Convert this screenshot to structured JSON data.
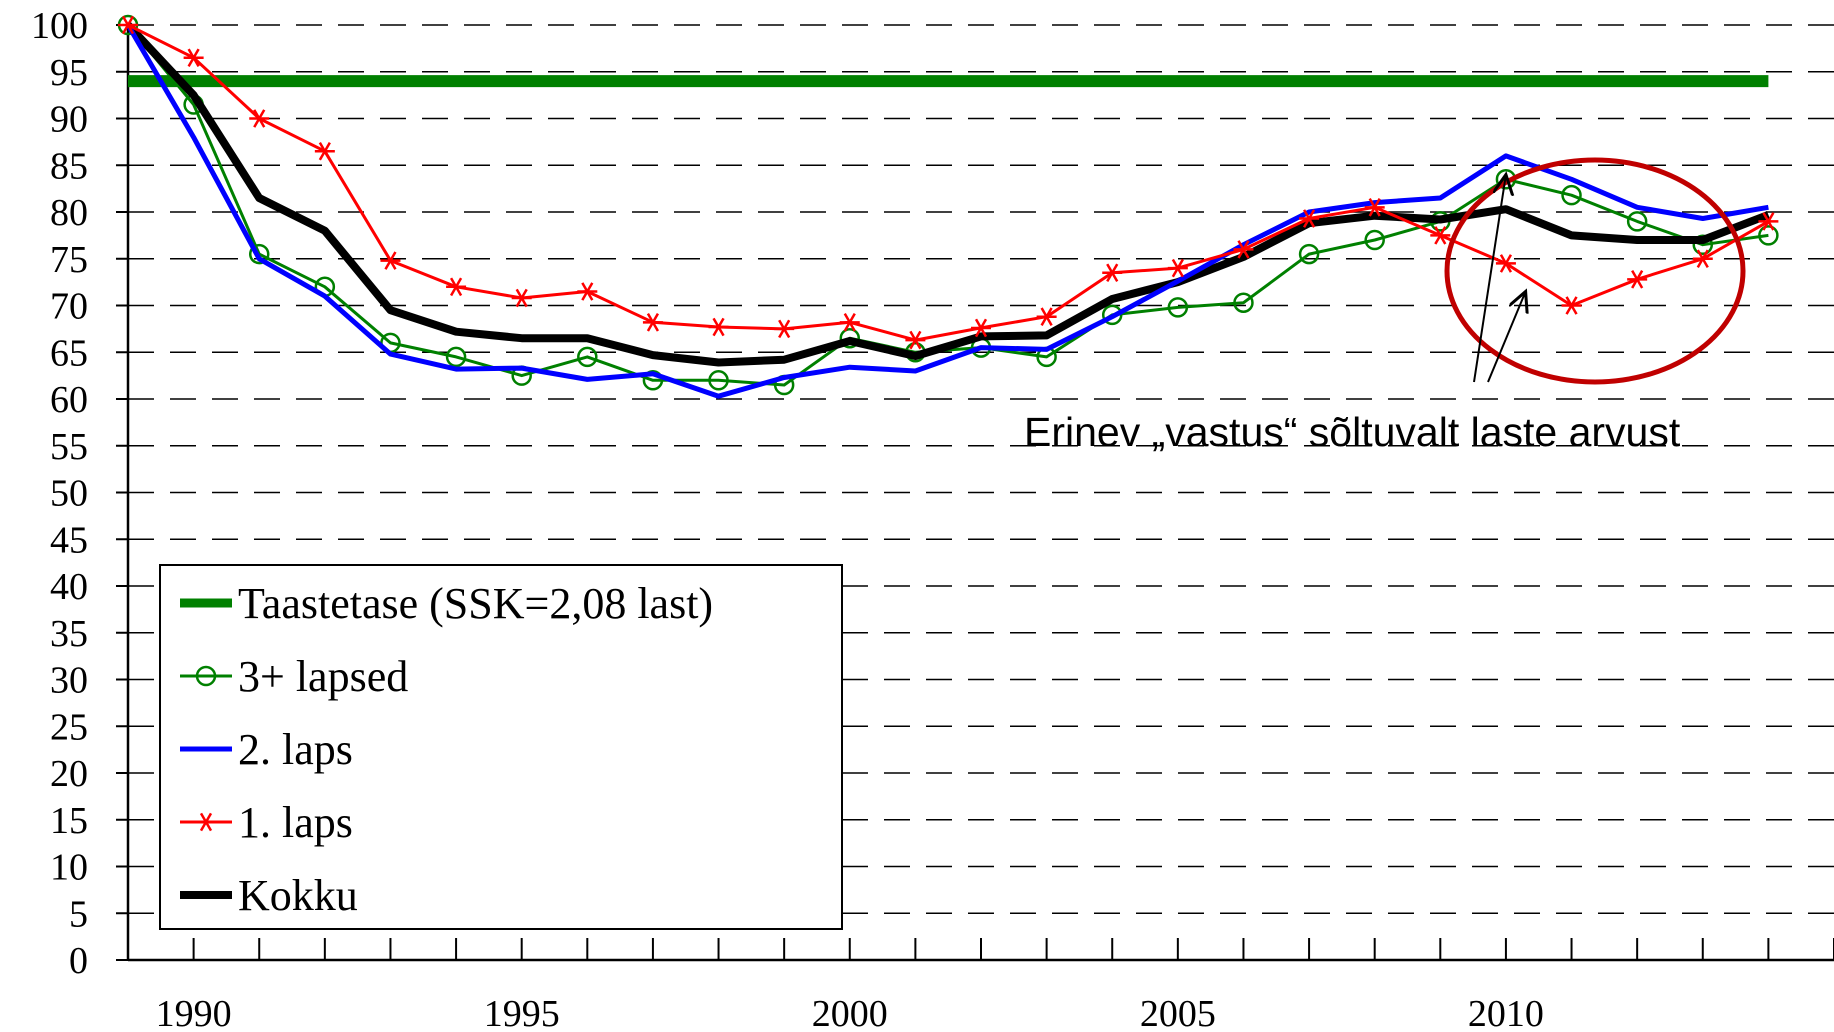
{
  "chart_data": {
    "type": "line",
    "title": "",
    "xlabel": "",
    "ylabel": "",
    "xlim": [
      1989,
      2015
    ],
    "ylim": [
      0,
      100
    ],
    "grid": "dashed horizontal",
    "x_ticks": [
      1990,
      1995,
      2000,
      2005,
      2010
    ],
    "y_ticks": [
      0,
      5,
      10,
      15,
      20,
      25,
      30,
      35,
      40,
      45,
      50,
      55,
      60,
      65,
      70,
      75,
      80,
      85,
      90,
      95,
      100
    ],
    "x": [
      1989,
      1990,
      1991,
      1992,
      1993,
      1994,
      1995,
      1996,
      1997,
      1998,
      1999,
      2000,
      2001,
      2002,
      2003,
      2004,
      2005,
      2006,
      2007,
      2008,
      2009,
      2010,
      2011,
      2012,
      2013,
      2014
    ],
    "series": [
      {
        "name": "Taastetase (SSK=2,08 last)",
        "color": "#008000",
        "marker": "none",
        "width": "thick",
        "values": [
          94,
          94,
          94,
          94,
          94,
          94,
          94,
          94,
          94,
          94,
          94,
          94,
          94,
          94,
          94,
          94,
          94,
          94,
          94,
          94,
          94,
          94,
          94,
          94,
          94,
          94
        ]
      },
      {
        "name": "3+ lapsed",
        "color": "#008000",
        "marker": "circle",
        "width": "thin",
        "values": [
          100,
          91.5,
          75.5,
          72,
          66,
          64.5,
          62.5,
          64.5,
          62,
          62,
          61.5,
          66.5,
          65,
          65.5,
          64.5,
          69,
          69.8,
          70.3,
          75.5,
          77,
          79,
          83.5,
          81.8,
          79,
          76.5,
          77.5
        ]
      },
      {
        "name": "2. laps",
        "color": "#0000ff",
        "marker": "none",
        "width": "medium",
        "values": [
          100,
          88,
          75,
          71,
          64.8,
          63.2,
          63.3,
          62.1,
          62.7,
          60.3,
          62.3,
          63.4,
          63,
          65.5,
          65.3,
          68.8,
          72.6,
          76.5,
          80,
          81,
          81.5,
          86,
          83.5,
          80.5,
          79.3,
          80.5
        ]
      },
      {
        "name": "1. laps",
        "color": "#ff0000",
        "marker": "star",
        "width": "thin",
        "values": [
          100,
          96.5,
          90,
          86.5,
          74.8,
          72,
          70.8,
          71.5,
          68.2,
          67.7,
          67.5,
          68.2,
          66.3,
          67.6,
          68.8,
          73.5,
          74,
          76,
          79.3,
          80.5,
          77.5,
          74.5,
          70,
          72.8,
          75,
          79
        ]
      },
      {
        "name": "Kokku",
        "color": "#000000",
        "marker": "none",
        "width": "extra-thick",
        "values": [
          100,
          92.5,
          81.5,
          78,
          69.5,
          67.2,
          66.5,
          66.5,
          64.7,
          63.9,
          64.2,
          66.2,
          64.6,
          66.7,
          66.8,
          70.7,
          72.5,
          75.2,
          78.8,
          79.6,
          79.2,
          80.3,
          77.5,
          77,
          77,
          79.7
        ]
      }
    ],
    "legend": {
      "placement": "bottom-left",
      "entries": [
        "Taastetase (SSK=2,08 last)",
        "3+ lapsed",
        "2. laps",
        "1. laps",
        "Kokku"
      ]
    },
    "annotation": {
      "text": "Erinev „vastus“ sõltuvalt laste arvust",
      "circle_color": "#c00000",
      "arrow_targets": [
        {
          "x": 2010,
          "y": 84
        },
        {
          "x": 2010.3,
          "y": 71.5
        }
      ]
    }
  }
}
